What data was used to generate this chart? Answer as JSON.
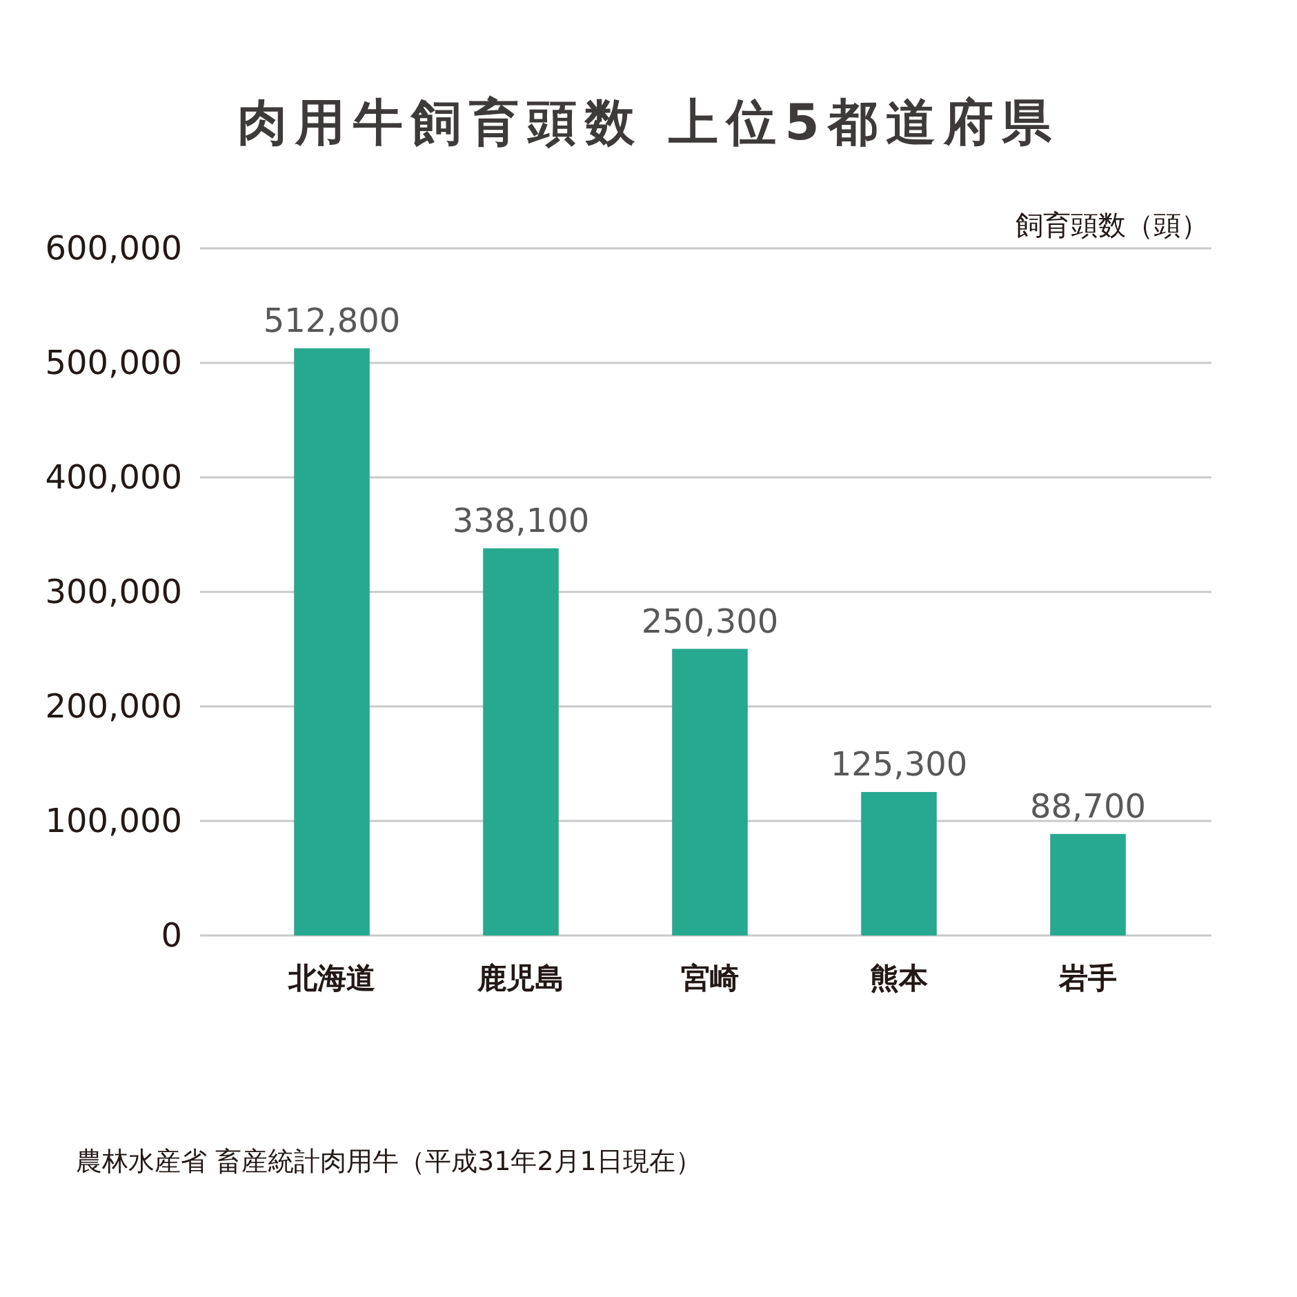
{
  "chart_data": {
    "type": "bar",
    "title": "肉用牛飼育頭数 上位5都道府県",
    "ylabel": "飼育頭数（頭）",
    "categories": [
      "北海道",
      "鹿児島",
      "宮崎",
      "熊本",
      "岩手"
    ],
    "values": [
      512800,
      338100,
      250300,
      125300,
      88700
    ],
    "value_labels": [
      "512,800",
      "338,100",
      "250,300",
      "125,300",
      "88,700"
    ],
    "color": "#27a98f",
    "ylim": [
      0,
      600000
    ],
    "yticks": [
      {
        "value": 0,
        "label": "0"
      },
      {
        "value": 100000,
        "label": "100,000"
      },
      {
        "value": 200000,
        "label": "200,000"
      },
      {
        "value": 300000,
        "label": "300,000"
      },
      {
        "value": 400000,
        "label": "400,000"
      },
      {
        "value": 500000,
        "label": "500,000"
      },
      {
        "value": 600000,
        "label": "600,000"
      }
    ],
    "grid": "y",
    "annotations": [
      "農林水産省 畜産統計肉用牛（平成31年2月1日現在）"
    ]
  }
}
